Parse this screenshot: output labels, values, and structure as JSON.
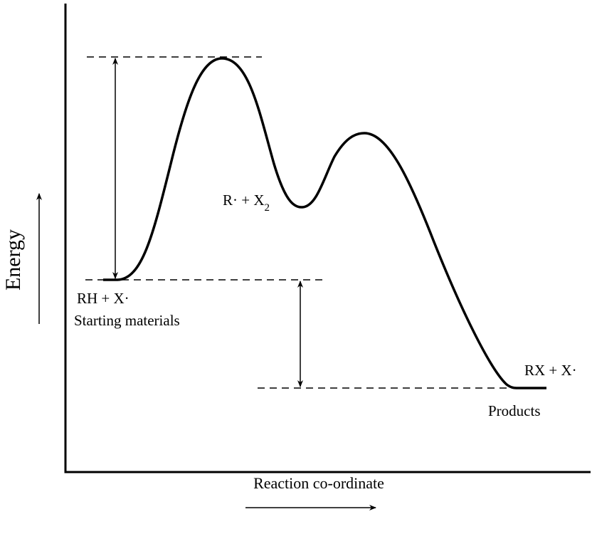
{
  "axes": {
    "y_label": "Energy",
    "x_label": "Reaction co-ordinate"
  },
  "labels": {
    "start_species": "RH + X·",
    "start_name": "Starting materials",
    "intermediate": {
      "text": "R· + X",
      "subscript": "2"
    },
    "product_species": "RX + X·",
    "product_name": "Products"
  }
}
